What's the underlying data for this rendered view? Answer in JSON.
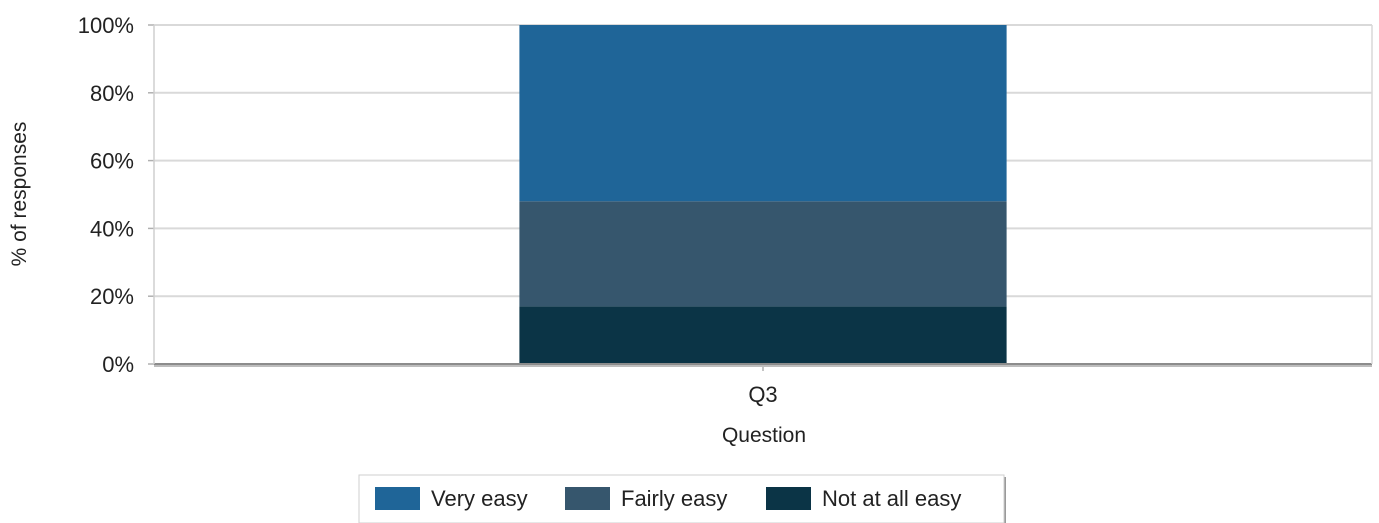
{
  "chart_data": {
    "type": "bar",
    "stacked": true,
    "categories": [
      "Q3"
    ],
    "series": [
      {
        "name": "Not at all easy",
        "values": [
          17
        ],
        "color": "#0b3446"
      },
      {
        "name": "Fairly easy",
        "values": [
          31
        ],
        "color": "#36566d"
      },
      {
        "name": "Very easy",
        "values": [
          52
        ],
        "color": "#1f6598"
      }
    ],
    "legend_order": [
      "Very easy",
      "Fairly easy",
      "Not at all easy"
    ],
    "xlabel": "Question",
    "ylabel": "% of responses",
    "ylim": [
      0,
      100
    ],
    "yticks": [
      "0%",
      "20%",
      "40%",
      "60%",
      "80%",
      "100%"
    ],
    "grid": true,
    "legend_position": "bottom"
  }
}
